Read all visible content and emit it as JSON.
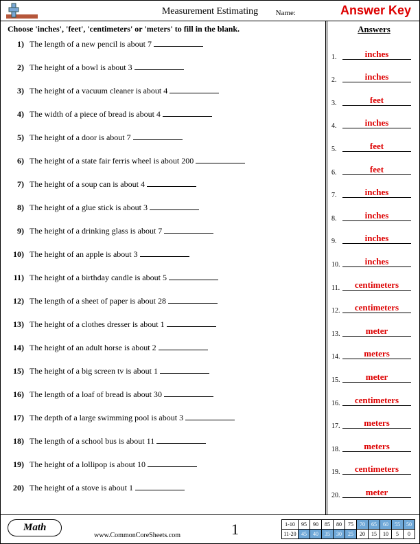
{
  "header": {
    "title": "Measurement Estimating",
    "name_label": "Name:",
    "answer_key": "Answer Key"
  },
  "instructions": "Choose 'inches', 'feet', 'centimeters' or 'meters' to fill in the blank.",
  "questions": [
    {
      "n": "1)",
      "text": "The length of a new pencil is about 7"
    },
    {
      "n": "2)",
      "text": "The height of a bowl is about 3"
    },
    {
      "n": "3)",
      "text": "The height of a vacuum cleaner is about 4"
    },
    {
      "n": "4)",
      "text": "The width of a piece of bread is about 4"
    },
    {
      "n": "5)",
      "text": "The height of a door is about 7"
    },
    {
      "n": "6)",
      "text": "The height of a state fair ferris wheel is about 200"
    },
    {
      "n": "7)",
      "text": "The height of a soup can is about 4"
    },
    {
      "n": "8)",
      "text": "The height of a glue stick is about 3"
    },
    {
      "n": "9)",
      "text": "The height of a drinking glass is about 7"
    },
    {
      "n": "10)",
      "text": "The height of an apple is about 3"
    },
    {
      "n": "11)",
      "text": "The height of a birthday candle is about 5"
    },
    {
      "n": "12)",
      "text": "The length of a sheet of paper is about 28"
    },
    {
      "n": "13)",
      "text": "The height of a clothes dresser is about 1"
    },
    {
      "n": "14)",
      "text": "The height of an adult horse is about 2"
    },
    {
      "n": "15)",
      "text": "The height of a big screen tv is about 1"
    },
    {
      "n": "16)",
      "text": "The length of a loaf of bread is about 30"
    },
    {
      "n": "17)",
      "text": "The depth of a large swimming pool is about 3"
    },
    {
      "n": "18)",
      "text": "The length of a school bus is about 11"
    },
    {
      "n": "19)",
      "text": "The height of a lollipop is about 10"
    },
    {
      "n": "20)",
      "text": "The height of a stove is about 1"
    }
  ],
  "answers_heading": "Answers",
  "answers": [
    {
      "n": "1.",
      "v": "inches"
    },
    {
      "n": "2.",
      "v": "inches"
    },
    {
      "n": "3.",
      "v": "feet"
    },
    {
      "n": "4.",
      "v": "inches"
    },
    {
      "n": "5.",
      "v": "feet"
    },
    {
      "n": "6.",
      "v": "feet"
    },
    {
      "n": "7.",
      "v": "inches"
    },
    {
      "n": "8.",
      "v": "inches"
    },
    {
      "n": "9.",
      "v": "inches"
    },
    {
      "n": "10.",
      "v": "inches"
    },
    {
      "n": "11.",
      "v": "centimeters"
    },
    {
      "n": "12.",
      "v": "centimeters"
    },
    {
      "n": "13.",
      "v": "meter"
    },
    {
      "n": "14.",
      "v": "meters"
    },
    {
      "n": "15.",
      "v": "meter"
    },
    {
      "n": "16.",
      "v": "centimeters"
    },
    {
      "n": "17.",
      "v": "meters"
    },
    {
      "n": "18.",
      "v": "meters"
    },
    {
      "n": "19.",
      "v": "centimeters"
    },
    {
      "n": "20.",
      "v": "meter"
    }
  ],
  "footer": {
    "subject": "Math",
    "url": "www.CommonCoreSheets.com",
    "pagenum": "1",
    "score": {
      "row1_label": "1-10",
      "row2_label": "11-20",
      "row1": [
        "95",
        "90",
        "85",
        "80",
        "75",
        "70",
        "65",
        "60",
        "55",
        "50"
      ],
      "row2": [
        "45",
        "40",
        "35",
        "30",
        "25",
        "20",
        "15",
        "10",
        "5",
        "0"
      ],
      "highlight_start_r1": 5,
      "highlight_start_r2": 0,
      "highlight_end_r2": 4
    }
  },
  "colors": {
    "answer_red": "#d00000",
    "highlight_blue": "#6fa8d8",
    "text": "#000000",
    "bg": "#ffffff"
  }
}
